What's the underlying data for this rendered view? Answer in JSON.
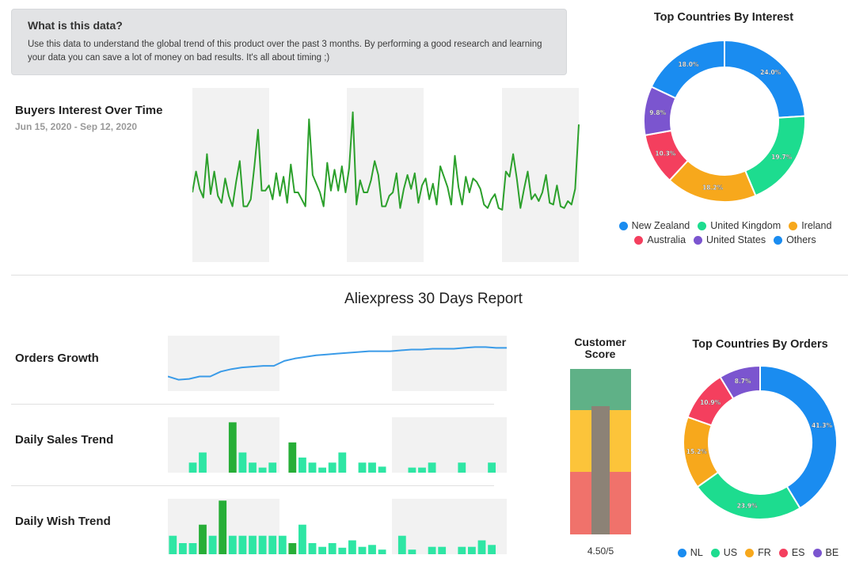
{
  "info": {
    "title": "What is this data?",
    "text": "Use this data to understand the global trend of this product over the past 3 months. By performing a good research and learning your data you can save a lot of money on bad results. It's all about timing ;)"
  },
  "interest": {
    "title": "Buyers Interest Over Time",
    "date_range": "Jun 15, 2020 - Sep 12, 2020"
  },
  "report": {
    "title": "Aliexpress 30 Days Report",
    "orders_growth_label": "Orders Growth",
    "daily_sales_label": "Daily Sales Trend",
    "daily_wish_label": "Daily Wish Trend"
  },
  "customer_score": {
    "title_line1": "Customer",
    "title_line2": "Score",
    "value_text": "4.50/5",
    "value": 4.5,
    "max": 5
  },
  "colors": {
    "blue": "#1a8cf0",
    "green": "#1ddc8f",
    "orange": "#f7a81c",
    "red": "#f43f5e",
    "purple": "#7b55cf",
    "line_green": "#2ca02c",
    "line_blue": "#3a9be8",
    "bar_teal": "#2ee6a4",
    "bar_green": "#27ae37"
  },
  "chart_data": [
    {
      "type": "line",
      "name": "buyers-interest",
      "values": [
        40,
        52,
        42,
        37,
        62,
        39,
        52,
        38,
        34,
        48,
        38,
        32,
        46,
        58,
        32,
        32,
        36,
        55,
        76,
        41,
        41,
        44,
        36,
        51,
        38,
        49,
        34,
        56,
        40,
        40,
        36,
        32,
        82,
        50,
        45,
        40,
        32,
        57,
        41,
        53,
        41,
        55,
        40,
        54,
        86,
        33,
        47,
        40,
        40,
        47,
        58,
        50,
        32,
        32,
        38,
        40,
        51,
        31,
        42,
        50,
        42,
        51,
        34,
        44,
        48,
        36,
        45,
        33,
        55,
        49,
        43,
        33,
        61,
        43,
        33,
        49,
        40,
        48,
        46,
        42,
        33,
        31,
        36,
        39,
        31,
        30,
        52,
        49,
        62,
        48,
        31,
        42,
        52,
        36,
        39,
        35,
        40,
        50,
        34,
        33,
        44,
        32,
        31,
        35,
        33,
        42,
        79
      ]
    },
    {
      "type": "line",
      "name": "orders-growth",
      "values": [
        18,
        14,
        15,
        18,
        18,
        24,
        27,
        29,
        30,
        31,
        31,
        37,
        40,
        42,
        44,
        45,
        46,
        47,
        48,
        49,
        49,
        49,
        50,
        51,
        51,
        52,
        52,
        52,
        53,
        54,
        54,
        53,
        53
      ]
    },
    {
      "type": "bar",
      "name": "daily-sales",
      "values": [
        0,
        0,
        1,
        2,
        0,
        0,
        5,
        2,
        1,
        0.5,
        1,
        0,
        3,
        1.5,
        1,
        0.5,
        1,
        2,
        0,
        1,
        1,
        0.6,
        0,
        0,
        0.5,
        0.5,
        1,
        0,
        0,
        1,
        0,
        0,
        1,
        0
      ],
      "highlight_indices": [
        6,
        12
      ]
    },
    {
      "type": "bar",
      "name": "daily-wish",
      "values": [
        2,
        1.2,
        1.2,
        3.2,
        2,
        5.8,
        2,
        2,
        2,
        2,
        2,
        2,
        1.2,
        3.2,
        1.2,
        0.8,
        1.2,
        0.7,
        1.5,
        0.8,
        1,
        0.5,
        0,
        2,
        0.5,
        0,
        0.8,
        0.8,
        0,
        0.8,
        0.8,
        1.5,
        1,
        0
      ],
      "highlight_indices": [
        3,
        5,
        12
      ]
    },
    {
      "type": "pie",
      "name": "top-countries-by-interest",
      "title": "Top Countries By Interest",
      "labels": [
        "New Zealand",
        "United Kingdom",
        "Ireland",
        "Australia",
        "United States",
        "Others"
      ],
      "values": [
        24.0,
        19.7,
        18.2,
        10.3,
        9.8,
        18.0
      ],
      "display_labels": [
        "24.0%",
        "19.7%",
        "18.2%",
        "10.3%",
        "9.8%",
        "18.0%"
      ],
      "colors": [
        "#1a8cf0",
        "#1ddc8f",
        "#f7a81c",
        "#f43f5e",
        "#7b55cf",
        "#1a8cf0"
      ],
      "legend_position": "bottom"
    },
    {
      "type": "pie",
      "name": "top-countries-by-orders",
      "title": "Top Countries By Orders",
      "labels": [
        "NL",
        "US",
        "FR",
        "ES",
        "BE"
      ],
      "values": [
        41.3,
        23.9,
        15.2,
        10.9,
        8.7
      ],
      "display_labels": [
        "41.3%",
        "23.9%",
        "15.2%",
        "10.9%",
        "8.7%"
      ],
      "colors": [
        "#1a8cf0",
        "#1ddc8f",
        "#f7a81c",
        "#f43f5e",
        "#7b55cf"
      ],
      "legend_position": "bottom"
    }
  ]
}
